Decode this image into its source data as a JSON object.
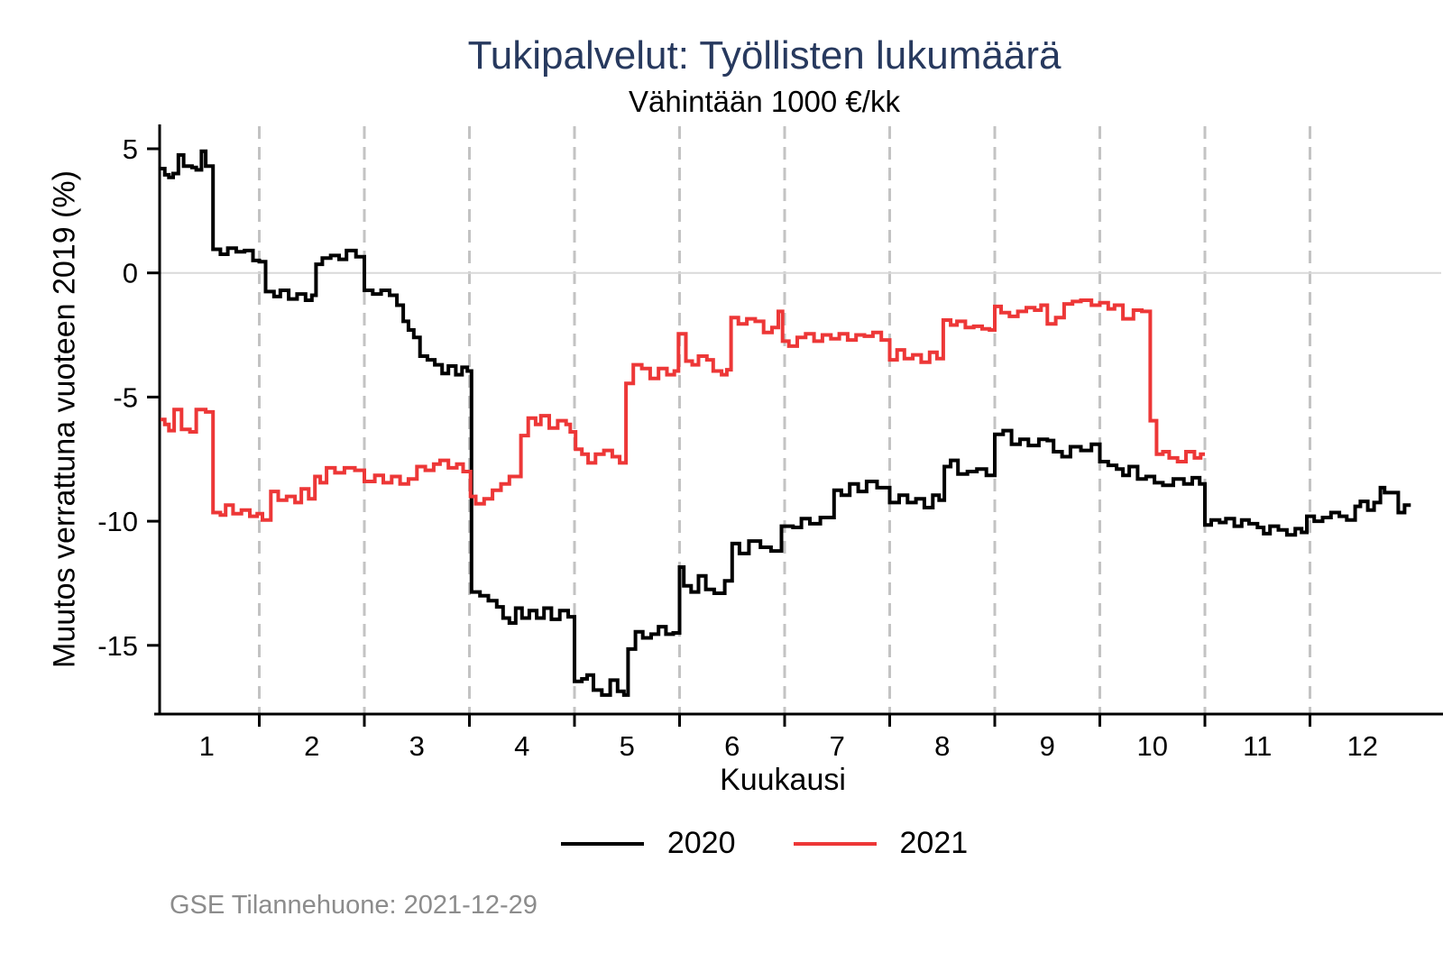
{
  "header": {
    "title": "Tukipalvelut: Työllisten lukumäärä",
    "subtitle": "Vähintään 1000 €/kk"
  },
  "footer": {
    "source_note": "GSE Tilannehuone: 2021-12-29"
  },
  "colors": {
    "title": "#27395e",
    "series_2020": "#000000",
    "series_2021": "#ed3737",
    "gridline": "#c3c3c3",
    "zero_line": "#d9d9d9",
    "axis": "#000000",
    "footer_text": "#8c8c8c"
  },
  "chart_data": {
    "type": "line",
    "style": "step-after",
    "title": "Tukipalvelut: Työllisten lukumäärä",
    "subtitle": "Vähintään 1000 €/kk",
    "xlabel": "Kuukausi",
    "ylabel": "Muutos verrattuna vuoteen 2019 (%)",
    "xlim": [
      0.5,
      12.6
    ],
    "ylim": [
      -17.8,
      5.9
    ],
    "x_ticks": [
      1,
      2,
      3,
      4,
      5,
      6,
      7,
      8,
      9,
      10,
      11,
      12
    ],
    "x_gridlines": [
      1.5,
      2.5,
      3.5,
      4.5,
      5.5,
      6.5,
      7.5,
      8.5,
      9.5,
      10.5,
      11.5
    ],
    "y_ticks": [
      5,
      0,
      -5,
      -10,
      -15
    ],
    "zero_line": true,
    "grid": "dashed-vertical",
    "legend_position": "bottom",
    "series": [
      {
        "name": "2020",
        "color": "#000000",
        "end": 12.46,
        "points": [
          [
            0.56,
            4.2
          ],
          [
            0.6,
            3.95
          ],
          [
            0.64,
            3.85
          ],
          [
            0.68,
            4.0
          ],
          [
            0.73,
            4.75
          ],
          [
            0.78,
            4.3
          ],
          [
            0.86,
            4.25
          ],
          [
            0.9,
            4.15
          ],
          [
            0.95,
            4.9
          ],
          [
            0.99,
            4.3
          ],
          [
            1.06,
            0.95
          ],
          [
            1.13,
            0.75
          ],
          [
            1.2,
            1.0
          ],
          [
            1.28,
            0.85
          ],
          [
            1.36,
            0.9
          ],
          [
            1.44,
            0.5
          ],
          [
            1.5,
            0.45
          ],
          [
            1.56,
            -0.75
          ],
          [
            1.64,
            -0.95
          ],
          [
            1.7,
            -0.7
          ],
          [
            1.78,
            -1.05
          ],
          [
            1.86,
            -0.85
          ],
          [
            1.94,
            -1.1
          ],
          [
            2.0,
            -0.9
          ],
          [
            2.04,
            0.35
          ],
          [
            2.1,
            0.6
          ],
          [
            2.18,
            0.7
          ],
          [
            2.26,
            0.55
          ],
          [
            2.33,
            0.9
          ],
          [
            2.42,
            0.65
          ],
          [
            2.5,
            -0.7
          ],
          [
            2.58,
            -0.85
          ],
          [
            2.66,
            -0.7
          ],
          [
            2.74,
            -0.9
          ],
          [
            2.81,
            -1.3
          ],
          [
            2.87,
            -1.95
          ],
          [
            2.92,
            -2.3
          ],
          [
            2.97,
            -2.6
          ],
          [
            3.03,
            -3.35
          ],
          [
            3.1,
            -3.5
          ],
          [
            3.17,
            -3.7
          ],
          [
            3.24,
            -4.05
          ],
          [
            3.3,
            -3.75
          ],
          [
            3.37,
            -4.1
          ],
          [
            3.43,
            -3.8
          ],
          [
            3.48,
            -3.95
          ],
          [
            3.52,
            -12.85
          ],
          [
            3.6,
            -13.0
          ],
          [
            3.68,
            -13.2
          ],
          [
            3.76,
            -13.45
          ],
          [
            3.82,
            -13.9
          ],
          [
            3.88,
            -14.1
          ],
          [
            3.94,
            -13.5
          ],
          [
            4.0,
            -13.9
          ],
          [
            4.07,
            -13.6
          ],
          [
            4.14,
            -13.9
          ],
          [
            4.21,
            -13.5
          ],
          [
            4.28,
            -13.95
          ],
          [
            4.36,
            -13.6
          ],
          [
            4.44,
            -13.85
          ],
          [
            4.5,
            -16.45
          ],
          [
            4.57,
            -16.35
          ],
          [
            4.62,
            -16.2
          ],
          [
            4.68,
            -16.8
          ],
          [
            4.76,
            -17.0
          ],
          [
            4.84,
            -16.4
          ],
          [
            4.91,
            -16.85
          ],
          [
            4.97,
            -17.0
          ],
          [
            5.01,
            -15.15
          ],
          [
            5.08,
            -14.45
          ],
          [
            5.15,
            -14.7
          ],
          [
            5.23,
            -14.55
          ],
          [
            5.3,
            -14.25
          ],
          [
            5.37,
            -14.55
          ],
          [
            5.44,
            -14.5
          ],
          [
            5.5,
            -11.85
          ],
          [
            5.54,
            -12.6
          ],
          [
            5.61,
            -12.85
          ],
          [
            5.68,
            -12.2
          ],
          [
            5.75,
            -12.75
          ],
          [
            5.83,
            -12.9
          ],
          [
            5.93,
            -12.4
          ],
          [
            6.0,
            -10.9
          ],
          [
            6.07,
            -11.3
          ],
          [
            6.16,
            -10.8
          ],
          [
            6.27,
            -11.05
          ],
          [
            6.37,
            -11.2
          ],
          [
            6.47,
            -10.2
          ],
          [
            6.58,
            -10.25
          ],
          [
            6.66,
            -9.9
          ],
          [
            6.74,
            -10.1
          ],
          [
            6.84,
            -9.85
          ],
          [
            6.97,
            -8.75
          ],
          [
            7.04,
            -8.95
          ],
          [
            7.12,
            -8.5
          ],
          [
            7.2,
            -8.8
          ],
          [
            7.28,
            -8.4
          ],
          [
            7.38,
            -8.65
          ],
          [
            7.5,
            -9.25
          ],
          [
            7.59,
            -8.95
          ],
          [
            7.67,
            -9.25
          ],
          [
            7.75,
            -9.1
          ],
          [
            7.83,
            -9.45
          ],
          [
            7.91,
            -8.95
          ],
          [
            7.97,
            -9.15
          ],
          [
            8.02,
            -7.8
          ],
          [
            8.08,
            -7.55
          ],
          [
            8.15,
            -8.1
          ],
          [
            8.24,
            -8.0
          ],
          [
            8.33,
            -7.9
          ],
          [
            8.42,
            -8.15
          ],
          [
            8.5,
            -6.5
          ],
          [
            8.58,
            -6.35
          ],
          [
            8.66,
            -6.9
          ],
          [
            8.74,
            -6.7
          ],
          [
            8.82,
            -6.95
          ],
          [
            8.92,
            -6.7
          ],
          [
            9.0,
            -6.75
          ],
          [
            9.06,
            -7.2
          ],
          [
            9.14,
            -7.4
          ],
          [
            9.22,
            -7.0
          ],
          [
            9.32,
            -7.15
          ],
          [
            9.42,
            -6.9
          ],
          [
            9.5,
            -7.6
          ],
          [
            9.58,
            -7.75
          ],
          [
            9.66,
            -7.9
          ],
          [
            9.72,
            -8.15
          ],
          [
            9.78,
            -7.8
          ],
          [
            9.86,
            -8.3
          ],
          [
            9.94,
            -8.2
          ],
          [
            10.02,
            -8.45
          ],
          [
            10.1,
            -8.55
          ],
          [
            10.2,
            -8.3
          ],
          [
            10.3,
            -8.5
          ],
          [
            10.38,
            -8.25
          ],
          [
            10.45,
            -8.5
          ],
          [
            10.5,
            -10.15
          ],
          [
            10.56,
            -9.95
          ],
          [
            10.64,
            -10.05
          ],
          [
            10.7,
            -9.9
          ],
          [
            10.78,
            -10.2
          ],
          [
            10.85,
            -9.95
          ],
          [
            10.92,
            -10.1
          ],
          [
            11.0,
            -10.25
          ],
          [
            11.06,
            -10.5
          ],
          [
            11.12,
            -10.2
          ],
          [
            11.2,
            -10.35
          ],
          [
            11.28,
            -10.55
          ],
          [
            11.36,
            -10.3
          ],
          [
            11.42,
            -10.45
          ],
          [
            11.47,
            -9.8
          ],
          [
            11.54,
            -10.0
          ],
          [
            11.62,
            -9.85
          ],
          [
            11.7,
            -9.65
          ],
          [
            11.78,
            -9.8
          ],
          [
            11.85,
            -9.95
          ],
          [
            11.93,
            -9.4
          ],
          [
            11.98,
            -9.2
          ],
          [
            12.05,
            -9.55
          ],
          [
            12.11,
            -9.25
          ],
          [
            12.17,
            -8.65
          ],
          [
            12.21,
            -8.85
          ],
          [
            12.34,
            -9.65
          ],
          [
            12.4,
            -9.35
          ]
        ]
      },
      {
        "name": "2021",
        "color": "#ed3737",
        "end": 10.5,
        "points": [
          [
            0.56,
            -5.9
          ],
          [
            0.6,
            -6.1
          ],
          [
            0.64,
            -6.35
          ],
          [
            0.69,
            -5.5
          ],
          [
            0.76,
            -6.3
          ],
          [
            0.84,
            -6.4
          ],
          [
            0.9,
            -5.5
          ],
          [
            0.99,
            -5.6
          ],
          [
            1.06,
            -9.65
          ],
          [
            1.13,
            -9.75
          ],
          [
            1.18,
            -9.35
          ],
          [
            1.25,
            -9.7
          ],
          [
            1.33,
            -9.55
          ],
          [
            1.41,
            -9.8
          ],
          [
            1.48,
            -9.7
          ],
          [
            1.53,
            -9.95
          ],
          [
            1.61,
            -8.8
          ],
          [
            1.68,
            -9.15
          ],
          [
            1.76,
            -9.0
          ],
          [
            1.84,
            -9.25
          ],
          [
            1.9,
            -8.7
          ],
          [
            1.97,
            -9.1
          ],
          [
            2.03,
            -8.2
          ],
          [
            2.08,
            -8.45
          ],
          [
            2.14,
            -7.85
          ],
          [
            2.22,
            -8.05
          ],
          [
            2.31,
            -7.85
          ],
          [
            2.41,
            -7.95
          ],
          [
            2.5,
            -8.4
          ],
          [
            2.6,
            -8.15
          ],
          [
            2.68,
            -8.45
          ],
          [
            2.76,
            -8.2
          ],
          [
            2.84,
            -8.5
          ],
          [
            2.92,
            -8.3
          ],
          [
            3.0,
            -7.8
          ],
          [
            3.08,
            -7.95
          ],
          [
            3.16,
            -7.7
          ],
          [
            3.22,
            -7.55
          ],
          [
            3.3,
            -7.85
          ],
          [
            3.38,
            -7.7
          ],
          [
            3.44,
            -8.0
          ],
          [
            3.51,
            -9.0
          ],
          [
            3.56,
            -9.3
          ],
          [
            3.64,
            -9.1
          ],
          [
            3.72,
            -8.75
          ],
          [
            3.8,
            -8.5
          ],
          [
            3.88,
            -8.2
          ],
          [
            3.99,
            -6.55
          ],
          [
            4.06,
            -5.85
          ],
          [
            4.13,
            -6.1
          ],
          [
            4.18,
            -5.75
          ],
          [
            4.26,
            -6.25
          ],
          [
            4.34,
            -5.95
          ],
          [
            4.42,
            -6.1
          ],
          [
            4.46,
            -6.4
          ],
          [
            4.51,
            -7.1
          ],
          [
            4.57,
            -7.3
          ],
          [
            4.63,
            -7.65
          ],
          [
            4.7,
            -7.3
          ],
          [
            4.78,
            -7.15
          ],
          [
            4.86,
            -7.4
          ],
          [
            4.93,
            -7.65
          ],
          [
            4.99,
            -4.45
          ],
          [
            5.06,
            -3.7
          ],
          [
            5.14,
            -3.85
          ],
          [
            5.22,
            -4.25
          ],
          [
            5.3,
            -3.85
          ],
          [
            5.38,
            -4.1
          ],
          [
            5.45,
            -3.95
          ],
          [
            5.49,
            -2.45
          ],
          [
            5.56,
            -3.55
          ],
          [
            5.62,
            -3.7
          ],
          [
            5.68,
            -3.35
          ],
          [
            5.76,
            -3.5
          ],
          [
            5.82,
            -3.95
          ],
          [
            5.9,
            -4.1
          ],
          [
            5.95,
            -3.9
          ],
          [
            5.99,
            -1.8
          ],
          [
            6.06,
            -2.05
          ],
          [
            6.14,
            -1.85
          ],
          [
            6.22,
            -1.95
          ],
          [
            6.3,
            -2.4
          ],
          [
            6.38,
            -2.2
          ],
          [
            6.44,
            -1.55
          ],
          [
            6.48,
            -2.75
          ],
          [
            6.54,
            -2.95
          ],
          [
            6.62,
            -2.6
          ],
          [
            6.7,
            -2.45
          ],
          [
            6.78,
            -2.75
          ],
          [
            6.86,
            -2.5
          ],
          [
            6.94,
            -2.65
          ],
          [
            7.02,
            -2.45
          ],
          [
            7.1,
            -2.7
          ],
          [
            7.18,
            -2.5
          ],
          [
            7.26,
            -2.55
          ],
          [
            7.34,
            -2.4
          ],
          [
            7.42,
            -2.7
          ],
          [
            7.5,
            -3.5
          ],
          [
            7.57,
            -3.1
          ],
          [
            7.64,
            -3.45
          ],
          [
            7.72,
            -3.3
          ],
          [
            7.8,
            -3.6
          ],
          [
            7.88,
            -3.2
          ],
          [
            7.95,
            -3.45
          ],
          [
            8.01,
            -1.9
          ],
          [
            8.08,
            -2.1
          ],
          [
            8.14,
            -1.95
          ],
          [
            8.22,
            -2.2
          ],
          [
            8.3,
            -2.15
          ],
          [
            8.38,
            -2.25
          ],
          [
            8.45,
            -2.3
          ],
          [
            8.5,
            -1.35
          ],
          [
            8.56,
            -1.6
          ],
          [
            8.64,
            -1.75
          ],
          [
            8.72,
            -1.55
          ],
          [
            8.8,
            -1.4
          ],
          [
            8.88,
            -1.5
          ],
          [
            8.94,
            -1.3
          ],
          [
            9.0,
            -2.05
          ],
          [
            9.08,
            -1.8
          ],
          [
            9.16,
            -1.25
          ],
          [
            9.24,
            -1.15
          ],
          [
            9.32,
            -1.1
          ],
          [
            9.42,
            -1.3
          ],
          [
            9.5,
            -1.2
          ],
          [
            9.58,
            -1.45
          ],
          [
            9.64,
            -1.3
          ],
          [
            9.72,
            -1.85
          ],
          [
            9.82,
            -1.5
          ],
          [
            9.9,
            -1.55
          ],
          [
            9.98,
            -5.95
          ],
          [
            10.04,
            -7.3
          ],
          [
            10.1,
            -7.2
          ],
          [
            10.16,
            -7.45
          ],
          [
            10.24,
            -7.6
          ],
          [
            10.32,
            -7.2
          ],
          [
            10.4,
            -7.45
          ],
          [
            10.46,
            -7.3
          ]
        ]
      }
    ]
  },
  "legend": {
    "items": [
      {
        "label": "2020",
        "color": "#000000"
      },
      {
        "label": "2021",
        "color": "#ed3737"
      }
    ]
  }
}
